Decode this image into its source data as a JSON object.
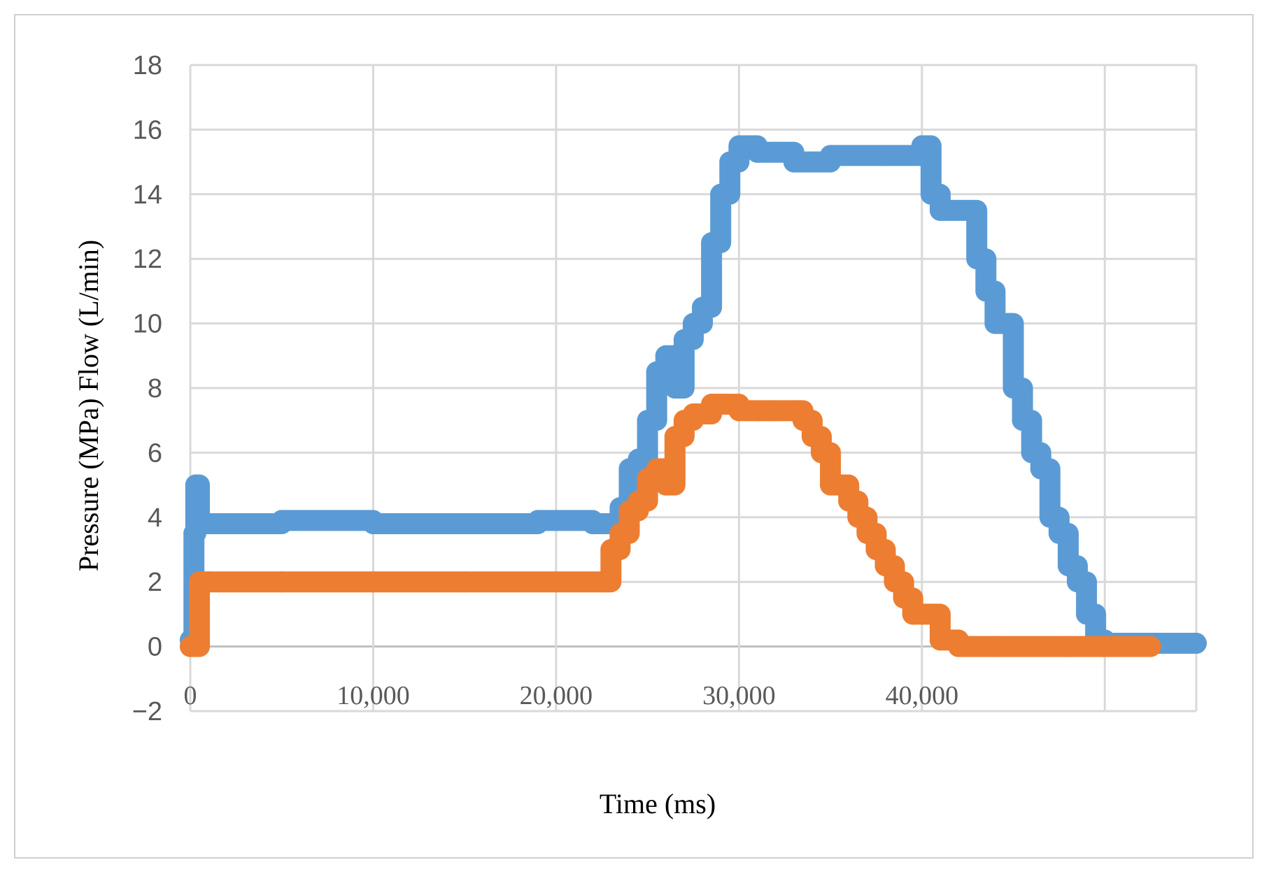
{
  "chart_data": {
    "type": "line",
    "xlabel": "Time  (ms)",
    "ylabel": "Pressure (MPa) Flow (L/min)",
    "xlim": [
      0,
      55000
    ],
    "ylim": [
      -2,
      18
    ],
    "x_ticks": [
      0,
      10000,
      20000,
      30000,
      40000
    ],
    "x_tick_labels": [
      "0",
      "10,000",
      "20,000",
      "30,000",
      "40,000"
    ],
    "x_gridlines": [
      0,
      10000,
      20000,
      30000,
      40000,
      50000,
      55000
    ],
    "y_ticks": [
      -2,
      0,
      2,
      4,
      6,
      8,
      10,
      12,
      14,
      16,
      18
    ],
    "y_tick_labels": [
      "−2",
      "0",
      "2",
      "4",
      "6",
      "8",
      "10",
      "12",
      "14",
      "16",
      "18"
    ],
    "grid": true,
    "legend": "none",
    "colors": {
      "series1": "#5b9bd5",
      "series2": "#ed7d31",
      "grid": "#d9d9d9"
    },
    "series": [
      {
        "color": "#5b9bd5",
        "x": [
          0,
          200,
          300,
          500,
          1000,
          5000,
          10000,
          15000,
          19000,
          22000,
          23000,
          23500,
          24000,
          24500,
          25000,
          25500,
          26000,
          26500,
          27000,
          27500,
          28000,
          28500,
          29000,
          29500,
          30000,
          31000,
          32000,
          33000,
          35000,
          38000,
          40000,
          40500,
          41000,
          42000,
          43000,
          43500,
          44000,
          45000,
          45500,
          46000,
          46500,
          47000,
          47500,
          48000,
          48500,
          49000,
          49500,
          50000,
          55000
        ],
        "y": [
          0.2,
          3.5,
          5,
          3.8,
          3.8,
          3.9,
          3.8,
          3.8,
          3.9,
          3.8,
          3.8,
          4.3,
          5.5,
          5.8,
          7,
          8.5,
          9,
          8,
          9.5,
          10,
          10.5,
          12.5,
          14,
          15,
          15.5,
          15.3,
          15.3,
          15,
          15.2,
          15.2,
          15.5,
          14,
          13.5,
          13.5,
          12,
          11,
          10,
          8,
          7,
          6,
          5.5,
          4,
          3.5,
          2.5,
          2,
          1,
          0.2,
          0.1,
          0.1
        ]
      },
      {
        "color": "#ed7d31",
        "x": [
          0,
          500,
          1000,
          5000,
          10000,
          15000,
          20000,
          22500,
          23000,
          23500,
          24000,
          24500,
          25000,
          25500,
          26000,
          26500,
          27000,
          27500,
          28000,
          28500,
          29000,
          30000,
          31000,
          32000,
          33000,
          33500,
          34000,
          34500,
          35000,
          35500,
          36000,
          36500,
          37000,
          37500,
          38000,
          38500,
          39000,
          39500,
          40000,
          40500,
          41000,
          42000,
          44000,
          48000,
          52500
        ],
        "y": [
          0,
          2,
          2,
          2,
          2,
          2,
          2,
          2,
          3,
          3.5,
          4.2,
          4.5,
          5.2,
          5.5,
          5,
          6.5,
          7,
          7.2,
          7.2,
          7.5,
          7.5,
          7.3,
          7.3,
          7.3,
          7.3,
          7,
          6.5,
          6,
          5,
          5,
          4.5,
          4,
          3.5,
          3,
          2.5,
          2,
          1.5,
          1,
          1,
          1,
          0.2,
          0,
          0,
          0,
          0
        ]
      }
    ]
  }
}
